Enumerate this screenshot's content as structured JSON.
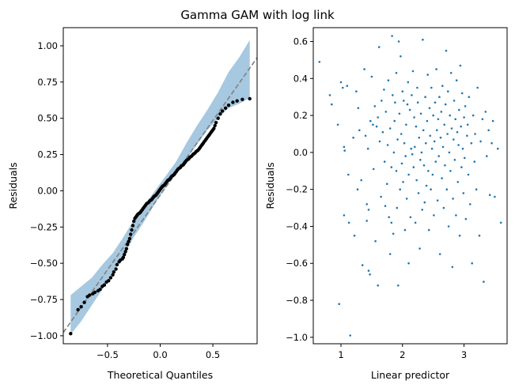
{
  "figure": {
    "title": "Gamma GAM with log link"
  },
  "chart_data": [
    {
      "type": "scatter",
      "subtype": "qq-plot",
      "xlabel": "Theoretical Quantiles",
      "ylabel": "Residuals",
      "xlim": [
        -0.92,
        0.92
      ],
      "ylim": [
        -1.055,
        1.125
      ],
      "xticks": [
        -0.5,
        0.0,
        0.5
      ],
      "xtick_labels": [
        "−0.5",
        "0.0",
        "0.5"
      ],
      "yticks": [
        -1.0,
        -0.75,
        -0.5,
        -0.25,
        0.0,
        0.25,
        0.5,
        0.75,
        1.0
      ],
      "ytick_labels": [
        "−1.00",
        "−0.75",
        "−0.50",
        "−0.25",
        "0.00",
        "0.25",
        "0.50",
        "0.75",
        "1.00"
      ],
      "reference_line": {
        "slope": 1.03,
        "intercept": -0.03,
        "color": "#808080",
        "style": "dashed"
      },
      "band": {
        "color": "#a6c8e0",
        "x": [
          -0.85,
          -0.75,
          -0.65,
          -0.55,
          -0.45,
          -0.35,
          -0.25,
          -0.15,
          -0.05,
          0.05,
          0.15,
          0.25,
          0.35,
          0.45,
          0.55,
          0.65,
          0.75,
          0.85
        ],
        "lower": [
          -0.99,
          -0.9,
          -0.79,
          -0.68,
          -0.56,
          -0.45,
          -0.32,
          -0.21,
          -0.09,
          0.02,
          0.12,
          0.22,
          0.32,
          0.42,
          0.5,
          0.57,
          0.6,
          0.64
        ],
        "upper": [
          -0.72,
          -0.66,
          -0.6,
          -0.51,
          -0.43,
          -0.32,
          -0.2,
          -0.1,
          0.0,
          0.1,
          0.2,
          0.33,
          0.45,
          0.56,
          0.68,
          0.82,
          0.92,
          1.04
        ]
      },
      "point_color": "#000000",
      "points": [
        [
          -0.85,
          -0.985
        ],
        [
          -0.78,
          -0.82
        ],
        [
          -0.75,
          -0.8
        ],
        [
          -0.72,
          -0.77
        ],
        [
          -0.69,
          -0.73
        ],
        [
          -0.67,
          -0.72
        ],
        [
          -0.64,
          -0.71
        ],
        [
          -0.62,
          -0.7
        ],
        [
          -0.59,
          -0.69
        ],
        [
          -0.57,
          -0.68
        ],
        [
          -0.55,
          -0.66
        ],
        [
          -0.53,
          -0.65
        ],
        [
          -0.51,
          -0.63
        ],
        [
          -0.49,
          -0.62
        ],
        [
          -0.47,
          -0.6
        ],
        [
          -0.45,
          -0.58
        ],
        [
          -0.44,
          -0.56
        ],
        [
          -0.42,
          -0.54
        ],
        [
          -0.41,
          -0.51
        ],
        [
          -0.39,
          -0.49
        ],
        [
          -0.38,
          -0.48
        ],
        [
          -0.36,
          -0.47
        ],
        [
          -0.35,
          -0.46
        ],
        [
          -0.34,
          -0.44
        ],
        [
          -0.33,
          -0.42
        ],
        [
          -0.32,
          -0.4
        ],
        [
          -0.31,
          -0.37
        ],
        [
          -0.3,
          -0.35
        ],
        [
          -0.29,
          -0.33
        ],
        [
          -0.28,
          -0.3
        ],
        [
          -0.27,
          -0.27
        ],
        [
          -0.26,
          -0.24
        ],
        [
          -0.25,
          -0.21
        ],
        [
          -0.24,
          -0.19
        ],
        [
          -0.23,
          -0.18
        ],
        [
          -0.22,
          -0.17
        ],
        [
          -0.21,
          -0.16
        ],
        [
          -0.2,
          -0.155
        ],
        [
          -0.19,
          -0.15
        ],
        [
          -0.18,
          -0.14
        ],
        [
          -0.17,
          -0.13
        ],
        [
          -0.16,
          -0.12
        ],
        [
          -0.15,
          -0.11
        ],
        [
          -0.14,
          -0.1
        ],
        [
          -0.13,
          -0.09
        ],
        [
          -0.12,
          -0.085
        ],
        [
          -0.11,
          -0.08
        ],
        [
          -0.1,
          -0.07
        ],
        [
          -0.09,
          -0.065
        ],
        [
          -0.08,
          -0.06
        ],
        [
          -0.07,
          -0.05
        ],
        [
          -0.06,
          -0.04
        ],
        [
          -0.05,
          -0.035
        ],
        [
          -0.04,
          -0.03
        ],
        [
          -0.03,
          -0.02
        ],
        [
          -0.02,
          -0.01
        ],
        [
          -0.01,
          0.0
        ],
        [
          0.0,
          0.01
        ],
        [
          0.01,
          0.02
        ],
        [
          0.02,
          0.03
        ],
        [
          0.03,
          0.035
        ],
        [
          0.04,
          0.04
        ],
        [
          0.05,
          0.05
        ],
        [
          0.06,
          0.06
        ],
        [
          0.07,
          0.07
        ],
        [
          0.08,
          0.075
        ],
        [
          0.09,
          0.08
        ],
        [
          0.1,
          0.09
        ],
        [
          0.11,
          0.1
        ],
        [
          0.12,
          0.105
        ],
        [
          0.13,
          0.11
        ],
        [
          0.14,
          0.12
        ],
        [
          0.15,
          0.13
        ],
        [
          0.16,
          0.14
        ],
        [
          0.17,
          0.15
        ],
        [
          0.18,
          0.155
        ],
        [
          0.19,
          0.16
        ],
        [
          0.2,
          0.17
        ],
        [
          0.21,
          0.175
        ],
        [
          0.22,
          0.18
        ],
        [
          0.23,
          0.19
        ],
        [
          0.24,
          0.2
        ],
        [
          0.25,
          0.21
        ],
        [
          0.26,
          0.215
        ],
        [
          0.27,
          0.22
        ],
        [
          0.28,
          0.23
        ],
        [
          0.29,
          0.235
        ],
        [
          0.3,
          0.24
        ],
        [
          0.31,
          0.25
        ],
        [
          0.32,
          0.255
        ],
        [
          0.33,
          0.26
        ],
        [
          0.34,
          0.27
        ],
        [
          0.35,
          0.275
        ],
        [
          0.36,
          0.28
        ],
        [
          0.37,
          0.29
        ],
        [
          0.38,
          0.3
        ],
        [
          0.39,
          0.31
        ],
        [
          0.4,
          0.32
        ],
        [
          0.41,
          0.33
        ],
        [
          0.42,
          0.34
        ],
        [
          0.43,
          0.35
        ],
        [
          0.44,
          0.36
        ],
        [
          0.45,
          0.37
        ],
        [
          0.46,
          0.38
        ],
        [
          0.47,
          0.39
        ],
        [
          0.48,
          0.4
        ],
        [
          0.49,
          0.41
        ],
        [
          0.5,
          0.42
        ],
        [
          0.51,
          0.43
        ],
        [
          0.52,
          0.45
        ],
        [
          0.53,
          0.47
        ],
        [
          0.55,
          0.5
        ],
        [
          0.57,
          0.53
        ],
        [
          0.59,
          0.55
        ],
        [
          0.62,
          0.57
        ],
        [
          0.65,
          0.59
        ],
        [
          0.69,
          0.61
        ],
        [
          0.73,
          0.62
        ],
        [
          0.78,
          0.63
        ],
        [
          0.85,
          0.635
        ]
      ]
    },
    {
      "type": "scatter",
      "xlabel": "Linear predictor",
      "ylabel": "Residuals",
      "xlim": [
        0.55,
        3.7
      ],
      "ylim": [
        -1.035,
        0.675
      ],
      "xticks": [
        1,
        2,
        3
      ],
      "xtick_labels": [
        "1",
        "2",
        "3"
      ],
      "yticks": [
        -1.0,
        -0.8,
        -0.6,
        -0.4,
        -0.2,
        0.0,
        0.2,
        0.4,
        0.6
      ],
      "ytick_labels": [
        "−1.0",
        "−0.8",
        "−0.6",
        "−0.4",
        "−0.2",
        "0.0",
        "0.2",
        "0.4",
        "0.6"
      ],
      "point_color": "#1f77b4",
      "points": [
        [
          0.65,
          0.49
        ],
        [
          0.82,
          0.31
        ],
        [
          0.85,
          0.26
        ],
        [
          0.95,
          0.15
        ],
        [
          0.97,
          -0.82
        ],
        [
          1.0,
          0.38
        ],
        [
          1.03,
          0.35
        ],
        [
          1.05,
          0.03
        ],
        [
          1.06,
          0.01
        ],
        [
          1.05,
          -0.34
        ],
        [
          1.1,
          0.36
        ],
        [
          1.12,
          -0.12
        ],
        [
          1.13,
          -0.38
        ],
        [
          1.15,
          -0.99
        ],
        [
          1.2,
          0.08
        ],
        [
          1.22,
          -0.45
        ],
        [
          1.25,
          0.33
        ],
        [
          1.27,
          -0.2
        ],
        [
          1.28,
          0.24
        ],
        [
          1.3,
          0.12
        ],
        [
          1.33,
          -0.15
        ],
        [
          1.35,
          -0.61
        ],
        [
          1.38,
          0.45
        ],
        [
          1.4,
          0.09
        ],
        [
          1.42,
          -0.28
        ],
        [
          1.42,
          -0.37
        ],
        [
          1.44,
          0.02
        ],
        [
          1.45,
          -0.64
        ],
        [
          1.45,
          -0.31
        ],
        [
          1.47,
          -0.66
        ],
        [
          1.48,
          0.17
        ],
        [
          1.5,
          0.41
        ],
        [
          1.52,
          0.15
        ],
        [
          1.53,
          -0.09
        ],
        [
          1.55,
          0.25
        ],
        [
          1.56,
          -0.48
        ],
        [
          1.58,
          0.14
        ],
        [
          1.6,
          0.19
        ],
        [
          1.6,
          -0.72
        ],
        [
          1.62,
          0.57
        ],
        [
          1.63,
          0.06
        ],
        [
          1.65,
          -0.24
        ],
        [
          1.66,
          0.28
        ],
        [
          1.68,
          0.11
        ],
        [
          1.7,
          0.34
        ],
        [
          1.71,
          -0.05
        ],
        [
          1.72,
          -0.29
        ],
        [
          1.73,
          0.22
        ],
        [
          1.75,
          -0.17
        ],
        [
          1.76,
          0.04
        ],
        [
          1.77,
          0.39
        ],
        [
          1.78,
          -0.35
        ],
        [
          1.8,
          0.13
        ],
        [
          1.8,
          -0.55
        ],
        [
          1.82,
          -0.08
        ],
        [
          1.82,
          -0.38
        ],
        [
          1.83,
          0.63
        ],
        [
          1.84,
          0.31
        ],
        [
          1.85,
          -0.44
        ],
        [
          1.86,
          0.0
        ],
        [
          1.87,
          0.17
        ],
        [
          1.88,
          0.27
        ],
        [
          1.9,
          -0.1
        ],
        [
          1.9,
          0.43
        ],
        [
          1.91,
          -0.3
        ],
        [
          1.92,
          0.07
        ],
        [
          1.93,
          -0.72
        ],
        [
          1.94,
          0.6
        ],
        [
          1.95,
          0.21
        ],
        [
          1.96,
          -0.2
        ],
        [
          1.97,
          0.52
        ],
        [
          1.98,
          0.1
        ],
        [
          1.99,
          -0.06
        ],
        [
          2.0,
          0.33
        ],
        [
          2.01,
          -0.16
        ],
        [
          2.02,
          0.28
        ],
        [
          2.03,
          0.05
        ],
        [
          2.04,
          -0.42
        ],
        [
          2.05,
          -0.02
        ],
        [
          2.06,
          0.15
        ],
        [
          2.07,
          -0.25
        ],
        [
          2.08,
          0.26
        ],
        [
          2.09,
          0.38
        ],
        [
          2.1,
          -0.6
        ],
        [
          2.1,
          -0.12
        ],
        [
          2.12,
          0.23
        ],
        [
          2.13,
          -0.35
        ],
        [
          2.14,
          0.02
        ],
        [
          2.15,
          0.31
        ],
        [
          2.16,
          -0.01
        ],
        [
          2.17,
          0.44
        ],
        [
          2.18,
          -0.08
        ],
        [
          2.19,
          0.19
        ],
        [
          2.2,
          0.03
        ],
        [
          2.21,
          -0.38
        ],
        [
          2.22,
          0.14
        ],
        [
          2.23,
          -0.15
        ],
        [
          2.24,
          0.35
        ],
        [
          2.25,
          0.27
        ],
        [
          2.26,
          -0.22
        ],
        [
          2.27,
          0.08
        ],
        [
          2.28,
          -0.52
        ],
        [
          2.29,
          -0.04
        ],
        [
          2.3,
          0.21
        ],
        [
          2.31,
          0.0
        ],
        [
          2.32,
          -0.31
        ],
        [
          2.33,
          0.61
        ],
        [
          2.34,
          0.12
        ],
        [
          2.35,
          -0.07
        ],
        [
          2.36,
          -0.27
        ],
        [
          2.37,
          0.3
        ],
        [
          2.38,
          0.05
        ],
        [
          2.39,
          -0.18
        ],
        [
          2.4,
          0.17
        ],
        [
          2.41,
          0.42
        ],
        [
          2.42,
          -0.1
        ],
        [
          2.43,
          -0.42
        ],
        [
          2.44,
          0.24
        ],
        [
          2.45,
          0.09
        ],
        [
          2.46,
          -0.2
        ],
        [
          2.47,
          0.35
        ],
        [
          2.48,
          0.02
        ],
        [
          2.49,
          -0.12
        ],
        [
          2.5,
          0.2
        ],
        [
          2.51,
          -0.34
        ],
        [
          2.52,
          0.06
        ],
        [
          2.53,
          0.27
        ],
        [
          2.54,
          -0.05
        ],
        [
          2.55,
          0.45
        ],
        [
          2.56,
          0.12
        ],
        [
          2.57,
          -0.26
        ],
        [
          2.58,
          0.18
        ],
        [
          2.59,
          -0.02
        ],
        [
          2.6,
          0.3
        ],
        [
          2.61,
          -0.55
        ],
        [
          2.62,
          0.08
        ],
        [
          2.63,
          0.22
        ],
        [
          2.64,
          -0.14
        ],
        [
          2.65,
          0.36
        ],
        [
          2.66,
          0.03
        ],
        [
          2.67,
          -0.3
        ],
        [
          2.68,
          0.15
        ],
        [
          2.69,
          -0.07
        ],
        [
          2.7,
          0.26
        ],
        [
          2.71,
          0.55
        ],
        [
          2.72,
          -0.2
        ],
        [
          2.73,
          0.1
        ],
        [
          2.74,
          0.33
        ],
        [
          2.75,
          -0.4
        ],
        [
          2.76,
          0.0
        ],
        [
          2.77,
          0.2
        ],
        [
          2.78,
          -0.1
        ],
        [
          2.79,
          0.43
        ],
        [
          2.8,
          0.13
        ],
        [
          2.81,
          -0.62
        ],
        [
          2.82,
          -0.25
        ],
        [
          2.83,
          0.07
        ],
        [
          2.84,
          0.28
        ],
        [
          2.85,
          -0.04
        ],
        [
          2.86,
          0.18
        ],
        [
          2.87,
          -0.34
        ],
        [
          2.88,
          0.39
        ],
        [
          2.89,
          0.11
        ],
        [
          2.9,
          -0.16
        ],
        [
          2.91,
          0.04
        ],
        [
          2.92,
          0.23
        ],
        [
          2.93,
          -0.45
        ],
        [
          2.94,
          0.47
        ],
        [
          2.95,
          0.14
        ],
        [
          2.96,
          -0.08
        ],
        [
          2.97,
          0.32
        ],
        [
          2.98,
          0.02
        ],
        [
          2.99,
          -0.22
        ],
        [
          3.0,
          0.19
        ],
        [
          3.01,
          -0.03
        ],
        [
          3.02,
          0.25
        ],
        [
          3.03,
          -0.36
        ],
        [
          3.05,
          0.09
        ],
        [
          3.06,
          0.15
        ],
        [
          3.07,
          -0.12
        ],
        [
          3.08,
          0.3
        ],
        [
          3.1,
          -0.28
        ],
        [
          3.12,
          0.05
        ],
        [
          3.13,
          -0.6
        ],
        [
          3.15,
          0.2
        ],
        [
          3.17,
          -0.05
        ],
        [
          3.18,
          0.1
        ],
        [
          3.2,
          -0.2
        ],
        [
          3.22,
          0.35
        ],
        [
          3.25,
          -0.45
        ],
        [
          3.27,
          0.06
        ],
        [
          3.3,
          0.18
        ],
        [
          3.32,
          -0.7
        ],
        [
          3.35,
          0.22
        ],
        [
          3.37,
          -0.02
        ],
        [
          3.4,
          0.12
        ],
        [
          3.42,
          -0.23
        ],
        [
          3.45,
          0.05
        ],
        [
          3.47,
          0.17
        ],
        [
          3.5,
          -0.24
        ],
        [
          3.55,
          0.02
        ],
        [
          3.6,
          -0.38
        ]
      ]
    }
  ]
}
